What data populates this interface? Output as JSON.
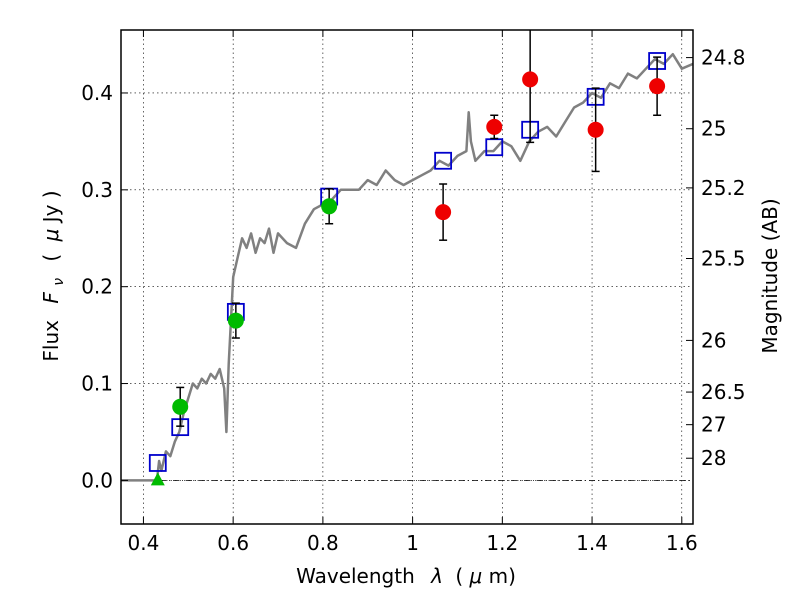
{
  "chart_data": {
    "type": "scatter",
    "xlabel_text": "Wavelength",
    "xlabel_math": "λ",
    "xlabel_unit_open": "(",
    "xlabel_unit_mu": "μ",
    "xlabel_unit_rest": "m)",
    "ylabel_text": "Flux",
    "ylabel_math": "F",
    "ylabel_sub": "ν",
    "ylabel_unit_open": "(",
    "ylabel_unit_mu": "μ",
    "ylabel_unit_rest": "Jy )",
    "y2label": "Magnitude (AB)",
    "xlim": [
      0.35,
      1.625
    ],
    "ylim": [
      -0.045,
      0.465
    ],
    "x_ticks": [
      0.4,
      0.6,
      0.8,
      1.0,
      1.2,
      1.4,
      1.6
    ],
    "x_tick_labels": [
      "0.4",
      "0.6",
      "0.8",
      "1",
      "1.2",
      "1.4",
      "1.6"
    ],
    "y_ticks": [
      0.0,
      0.1,
      0.2,
      0.3,
      0.4
    ],
    "y_tick_labels": [
      "0.0",
      "0.1",
      "0.2",
      "0.3",
      "0.4"
    ],
    "mag_ticks": [
      24.8,
      25,
      25.2,
      25.5,
      26,
      26.5,
      27,
      28
    ],
    "mag_tick_labels": [
      "24.8",
      "25",
      "25.2",
      "25.5",
      "26",
      "26.5",
      "27",
      "28"
    ],
    "grid": true,
    "zero_line": true,
    "colors": {
      "template": "#808080",
      "model": "#0000cc",
      "green": "#00bb00",
      "red": "#ee0000",
      "errorbar": "#000000",
      "grid": "#000000"
    },
    "series": [
      {
        "style": "line",
        "points": [
          [
            0.35,
            0.0
          ],
          [
            0.4,
            0.0
          ],
          [
            0.43,
            0.0
          ],
          [
            0.435,
            0.02
          ],
          [
            0.44,
            0.01
          ],
          [
            0.45,
            0.03
          ],
          [
            0.46,
            0.025
          ],
          [
            0.47,
            0.04
          ],
          [
            0.48,
            0.05
          ],
          [
            0.49,
            0.07
          ],
          [
            0.5,
            0.085
          ],
          [
            0.51,
            0.1
          ],
          [
            0.52,
            0.095
          ],
          [
            0.53,
            0.105
          ],
          [
            0.54,
            0.1
          ],
          [
            0.55,
            0.11
          ],
          [
            0.56,
            0.105
          ],
          [
            0.57,
            0.115
          ],
          [
            0.58,
            0.095
          ],
          [
            0.585,
            0.05
          ],
          [
            0.59,
            0.12
          ],
          [
            0.6,
            0.21
          ],
          [
            0.61,
            0.23
          ],
          [
            0.62,
            0.25
          ],
          [
            0.63,
            0.24
          ],
          [
            0.64,
            0.255
          ],
          [
            0.65,
            0.235
          ],
          [
            0.66,
            0.25
          ],
          [
            0.67,
            0.245
          ],
          [
            0.68,
            0.26
          ],
          [
            0.69,
            0.235
          ],
          [
            0.7,
            0.255
          ],
          [
            0.72,
            0.245
          ],
          [
            0.74,
            0.24
          ],
          [
            0.76,
            0.265
          ],
          [
            0.78,
            0.28
          ],
          [
            0.8,
            0.285
          ],
          [
            0.82,
            0.29
          ],
          [
            0.84,
            0.3
          ],
          [
            0.86,
            0.3
          ],
          [
            0.88,
            0.3
          ],
          [
            0.9,
            0.31
          ],
          [
            0.92,
            0.305
          ],
          [
            0.94,
            0.32
          ],
          [
            0.96,
            0.31
          ],
          [
            0.98,
            0.305
          ],
          [
            1.0,
            0.31
          ],
          [
            1.02,
            0.315
          ],
          [
            1.04,
            0.32
          ],
          [
            1.06,
            0.33
          ],
          [
            1.08,
            0.325
          ],
          [
            1.1,
            0.335
          ],
          [
            1.12,
            0.34
          ],
          [
            1.125,
            0.38
          ],
          [
            1.13,
            0.35
          ],
          [
            1.14,
            0.33
          ],
          [
            1.16,
            0.34
          ],
          [
            1.18,
            0.34
          ],
          [
            1.2,
            0.35
          ],
          [
            1.22,
            0.345
          ],
          [
            1.24,
            0.33
          ],
          [
            1.26,
            0.35
          ],
          [
            1.28,
            0.36
          ],
          [
            1.3,
            0.365
          ],
          [
            1.32,
            0.355
          ],
          [
            1.34,
            0.37
          ],
          [
            1.36,
            0.385
          ],
          [
            1.38,
            0.39
          ],
          [
            1.4,
            0.4
          ],
          [
            1.42,
            0.395
          ],
          [
            1.44,
            0.41
          ],
          [
            1.46,
            0.405
          ],
          [
            1.48,
            0.42
          ],
          [
            1.5,
            0.415
          ],
          [
            1.52,
            0.425
          ],
          [
            1.54,
            0.435
          ],
          [
            1.56,
            0.43
          ],
          [
            1.58,
            0.44
          ],
          [
            1.6,
            0.425
          ],
          [
            1.625,
            0.43
          ]
        ]
      },
      {
        "style": "open-square",
        "points": [
          [
            0.432,
            0.018
          ],
          [
            0.482,
            0.055
          ],
          [
            0.606,
            0.174
          ],
          [
            0.814,
            0.293
          ],
          [
            1.068,
            0.33
          ],
          [
            1.182,
            0.344
          ],
          [
            1.262,
            0.362
          ],
          [
            1.408,
            0.396
          ],
          [
            1.545,
            0.433
          ]
        ]
      },
      {
        "style": "filled-circle-green",
        "points": [
          {
            "x": 0.482,
            "y": 0.076,
            "err": 0.02
          },
          {
            "x": 0.606,
            "y": 0.165,
            "err": 0.018
          },
          {
            "x": 0.814,
            "y": 0.283,
            "err": 0.018
          }
        ]
      },
      {
        "style": "filled-circle-red",
        "points": [
          {
            "x": 1.068,
            "y": 0.277,
            "err": 0.029
          },
          {
            "x": 1.182,
            "y": 0.365,
            "err": 0.012
          },
          {
            "x": 1.262,
            "y": 0.414,
            "err": 0.065
          },
          {
            "x": 1.408,
            "y": 0.362,
            "err": 0.043
          },
          {
            "x": 1.545,
            "y": 0.407,
            "err": 0.03
          }
        ]
      },
      {
        "style": "green-triangle",
        "points": [
          [
            0.432,
            0.0
          ]
        ]
      }
    ]
  }
}
